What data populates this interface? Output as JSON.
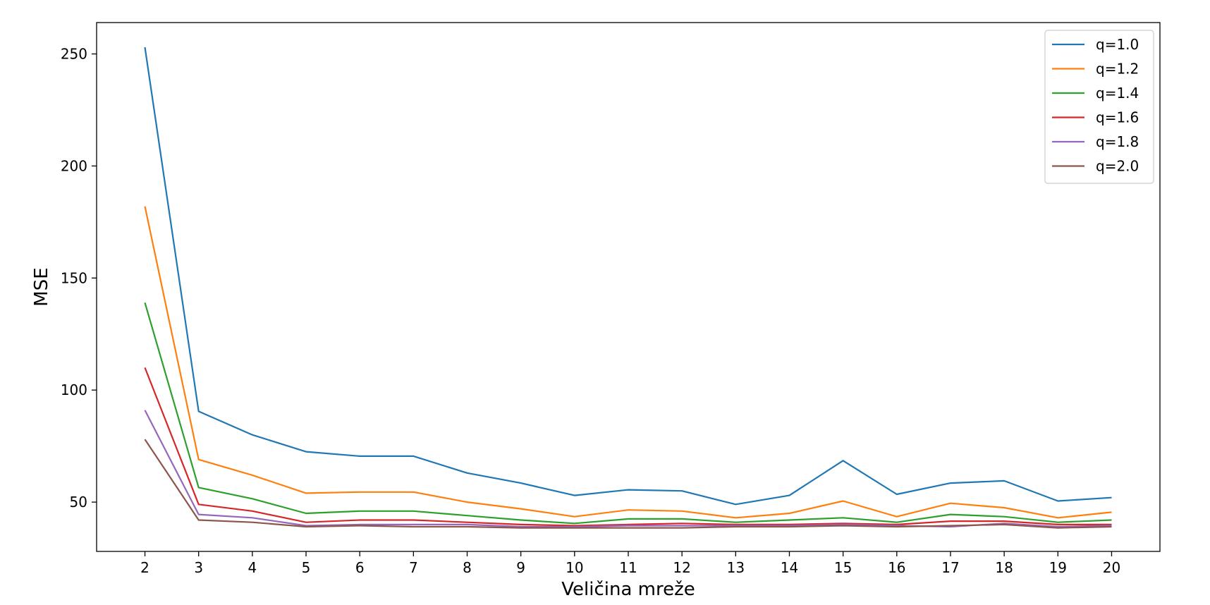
{
  "chart_data": {
    "type": "line",
    "title": "",
    "xlabel": "Veličina mreže",
    "ylabel": "MSE",
    "x": [
      2,
      3,
      4,
      5,
      6,
      7,
      8,
      9,
      10,
      11,
      12,
      13,
      14,
      15,
      16,
      17,
      18,
      19,
      20
    ],
    "xticks": [
      "2",
      "3",
      "4",
      "5",
      "6",
      "7",
      "8",
      "9",
      "10",
      "11",
      "12",
      "13",
      "14",
      "15",
      "16",
      "17",
      "18",
      "19",
      "20"
    ],
    "yticks": [
      50,
      100,
      150,
      200,
      250
    ],
    "xlim": [
      1.1,
      20.9
    ],
    "ylim": [
      28,
      264
    ],
    "grid": false,
    "legend_position": "top-right",
    "series": [
      {
        "name": "q=1.0",
        "color": "#1f77b4",
        "values": [
          253,
          90.5,
          80,
          72.5,
          70.5,
          70.5,
          63,
          58.5,
          53,
          55.5,
          55,
          49,
          53,
          68.5,
          53.5,
          58.5,
          59.5,
          50.5,
          52
        ]
      },
      {
        "name": "q=1.2",
        "color": "#ff7f0e",
        "values": [
          182,
          69,
          62,
          54,
          54.5,
          54.5,
          50,
          47,
          43.5,
          46.5,
          46,
          43,
          45,
          50.5,
          43.5,
          49.5,
          47.5,
          43,
          45.5
        ]
      },
      {
        "name": "q=1.4",
        "color": "#2ca02c",
        "values": [
          139,
          56.5,
          51.5,
          45,
          46,
          46,
          44,
          42,
          40.5,
          42.5,
          42.5,
          41,
          42,
          43,
          41,
          44.5,
          43.5,
          41,
          42
        ]
      },
      {
        "name": "q=1.6",
        "color": "#d62728",
        "values": [
          110,
          49,
          46,
          41,
          42,
          42,
          41,
          40,
          39.5,
          40,
          40.5,
          40,
          40,
          40.5,
          40,
          41.5,
          41.5,
          40,
          40
        ]
      },
      {
        "name": "q=1.8",
        "color": "#9467bd",
        "values": [
          91,
          44.5,
          43,
          39.5,
          40,
          40,
          40,
          39,
          39,
          39.5,
          39.5,
          39.5,
          39.5,
          40,
          39.5,
          39,
          40.5,
          39,
          39.5
        ]
      },
      {
        "name": "q=2.0",
        "color": "#8c564b",
        "values": [
          78,
          42,
          41,
          39,
          39.5,
          39,
          39,
          38.5,
          38.5,
          38.5,
          38.5,
          39,
          39,
          39.5,
          39,
          39.5,
          40,
          38.5,
          39
        ]
      }
    ]
  }
}
